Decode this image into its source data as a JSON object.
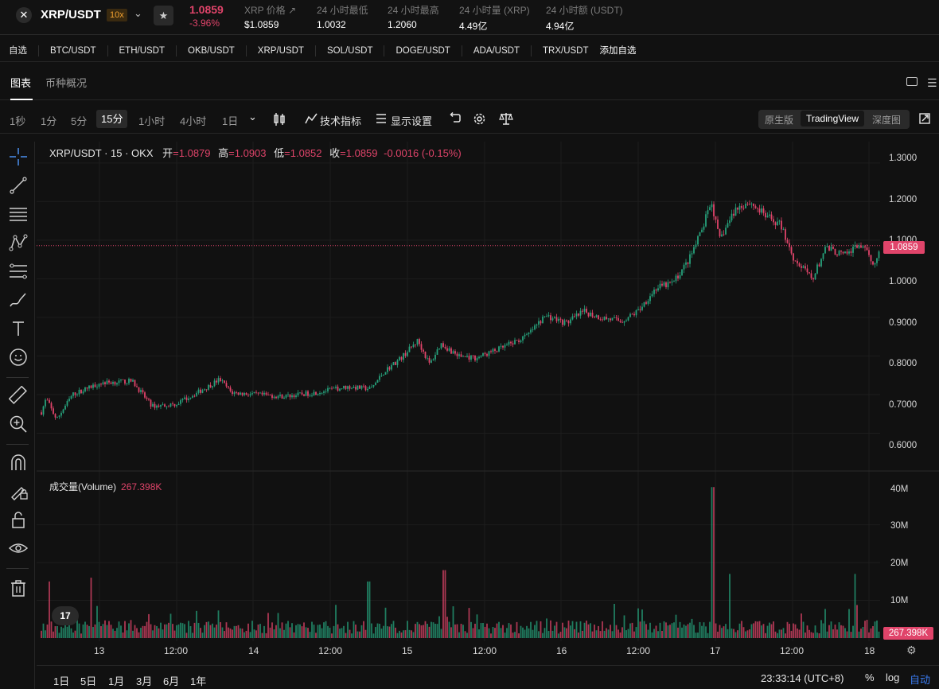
{
  "header": {
    "logo_glyph": "✕",
    "pair": "XRP/USDT",
    "leverage": "10x",
    "dropdown_glyph": "⌄",
    "fav_glyph": "★",
    "last_price": "1.0859",
    "change": "-3.96%",
    "stats": [
      {
        "label": "XRP 价格 ↗",
        "value": "$1.0859"
      },
      {
        "label": "24 小时最低",
        "value": "1.0032"
      },
      {
        "label": "24 小时最高",
        "value": "1.2060"
      },
      {
        "label": "24 小时量 (XRP)",
        "value": "4.49亿"
      },
      {
        "label": "24 小时额 (USDT)",
        "value": "4.94亿"
      }
    ]
  },
  "watchlist": {
    "label": "自选",
    "items": [
      "BTC/USDT",
      "ETH/USDT",
      "OKB/USDT",
      "XRP/USDT",
      "SOL/USDT",
      "DOGE/USDT",
      "ADA/USDT",
      "TRX/USDT"
    ],
    "add_label": "添加自选"
  },
  "tabs": [
    {
      "label": "图表",
      "active": true
    },
    {
      "label": "币种概况",
      "active": false
    }
  ],
  "toolbar": {
    "timeframes": [
      "1秒",
      "1分",
      "5分",
      "15分",
      "1小时",
      "4小时",
      "1日"
    ],
    "active_timeframe": "15分",
    "more_glyph": "⌄",
    "indicators_label": "技术指标",
    "display_label": "显示设置",
    "views": [
      "原生版",
      "TradingView",
      "深度图"
    ],
    "active_view": "TradingView"
  },
  "legend": {
    "symbol": "XRP/USDT · 15 · OKX",
    "open_k": "开",
    "open_v": "=1.0879",
    "high_k": "高",
    "high_v": "=1.0903",
    "low_k": "低",
    "low_v": "=1.0852",
    "close_k": "收",
    "close_v": "=1.0859",
    "change_v": "-0.0016 (-0.15%)"
  },
  "volume_legend": {
    "label": "成交量(Volume)",
    "value": "267.398K"
  },
  "price_axis": [
    "1.3000",
    "1.2000",
    "1.1000",
    "1.0000",
    "0.9000",
    "0.8000",
    "0.7000",
    "0.6000"
  ],
  "current_price_label": "1.0859",
  "volume_axis": [
    "40M",
    "30M",
    "20M",
    "10M"
  ],
  "current_volume_label": "267.398K",
  "time_axis": [
    "13",
    "12:00",
    "14",
    "12:00",
    "15",
    "12:00",
    "16",
    "12:00",
    "17",
    "12:00",
    "18"
  ],
  "tv_logo": "17",
  "bottom": {
    "ranges": [
      "1日",
      "5日",
      "1月",
      "3月",
      "6月",
      "1年"
    ],
    "clock": "23:33:14 (UTC+8)",
    "pct": "%",
    "log": "log",
    "auto": "自动"
  },
  "colors": {
    "up": "#26a17b",
    "down": "#e0446a",
    "accent": "#3a7bf0"
  },
  "chart_data": {
    "type": "candlestick",
    "interval": "15",
    "price_range": [
      0.57,
      1.31
    ],
    "volume_range": [
      0,
      43000000
    ],
    "current_price": 1.0859,
    "current_volume": 267398,
    "anchors": [
      [
        0,
        0.618
      ],
      [
        12,
        0.69
      ],
      [
        25,
        0.635
      ],
      [
        45,
        0.7
      ],
      [
        80,
        0.73
      ],
      [
        120,
        0.735
      ],
      [
        145,
        0.67
      ],
      [
        175,
        0.675
      ],
      [
        215,
        0.72
      ],
      [
        230,
        0.74
      ],
      [
        245,
        0.705
      ],
      [
        275,
        0.7
      ],
      [
        310,
        0.695
      ],
      [
        350,
        0.705
      ],
      [
        390,
        0.72
      ],
      [
        420,
        0.715
      ],
      [
        437,
        0.76
      ],
      [
        458,
        0.795
      ],
      [
        479,
        0.84
      ],
      [
        494,
        0.778
      ],
      [
        508,
        0.832
      ],
      [
        530,
        0.8
      ],
      [
        552,
        0.795
      ],
      [
        584,
        0.82
      ],
      [
        615,
        0.85
      ],
      [
        640,
        0.905
      ],
      [
        665,
        0.885
      ],
      [
        688,
        0.915
      ],
      [
        708,
        0.9
      ],
      [
        735,
        0.89
      ],
      [
        755,
        0.915
      ],
      [
        778,
        0.975
      ],
      [
        800,
        0.99
      ],
      [
        820,
        1.05
      ],
      [
        835,
        1.12
      ],
      [
        848,
        1.2
      ],
      [
        858,
        1.1
      ],
      [
        878,
        1.18
      ],
      [
        895,
        1.2
      ],
      [
        918,
        1.16
      ],
      [
        935,
        1.14
      ],
      [
        952,
        1.05
      ],
      [
        975,
        1.0
      ],
      [
        992,
        1.08
      ],
      [
        1015,
        1.06
      ],
      [
        1035,
        1.09
      ],
      [
        1052,
        1.04
      ],
      [
        1073,
        1.14
      ],
      [
        1090,
        1.0859
      ]
    ],
    "volume_spikes": [
      [
        0.01,
        15000000
      ],
      [
        0.06,
        16000000
      ],
      [
        0.39,
        15000000
      ],
      [
        0.48,
        18000000
      ],
      [
        0.8,
        40000000
      ],
      [
        0.82,
        17000000
      ],
      [
        0.97,
        17000000
      ]
    ]
  }
}
